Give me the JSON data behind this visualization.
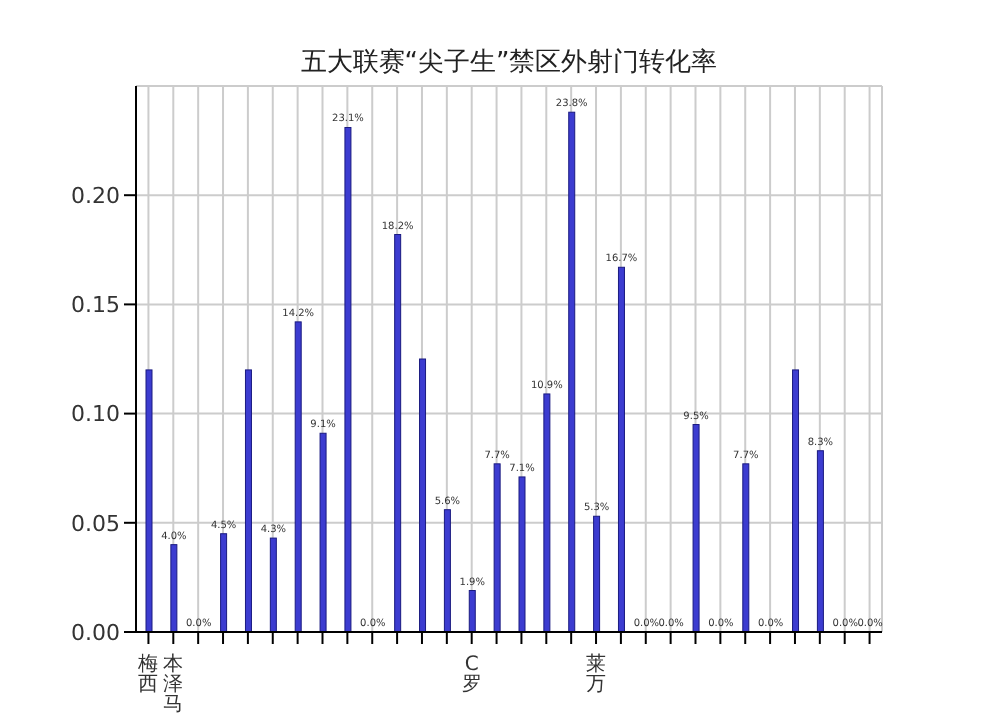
{
  "chart_data": {
    "type": "bar",
    "title": "五大联赛“尖子生”禁区外射门转化率",
    "categories": [
      "梅西",
      "本泽马",
      null,
      null,
      null,
      null,
      null,
      null,
      null,
      null,
      null,
      null,
      null,
      "C罗",
      null,
      null,
      null,
      null,
      "莱万",
      null,
      null,
      null,
      null,
      null,
      null,
      null,
      null,
      null,
      null,
      null
    ],
    "values": [
      0.12,
      0.04,
      0.0,
      0.045,
      0.12,
      0.043,
      0.142,
      0.091,
      0.231,
      0.0,
      0.182,
      0.125,
      0.056,
      0.019,
      0.077,
      0.071,
      0.109,
      0.238,
      0.053,
      0.167,
      0.0,
      0.0,
      0.095,
      0.0,
      0.077,
      0.0,
      0.12,
      0.083,
      0.0,
      0.0
    ],
    "value_labels": [
      null,
      "4.0%",
      "0.0%",
      "4.5%",
      null,
      "4.3%",
      "14.2%",
      "9.1%",
      "23.1%",
      "0.0%",
      "18.2%",
      null,
      "5.6%",
      "1.9%",
      "7.7%",
      "7.1%",
      "10.9%",
      "23.8%",
      "5.3%",
      "16.7%",
      "0.0%",
      "0.0%",
      "9.5%",
      "0.0%",
      "7.7%",
      "0.0%",
      null,
      "8.3%",
      "0.0%",
      "0.0%"
    ],
    "color": "#3c3cd0",
    "ylim": [
      0,
      0.25
    ],
    "yticks": [
      {
        "value": 0,
        "label": "0.00"
      },
      {
        "value": 0.05,
        "label": "0.05"
      },
      {
        "value": 0.1,
        "label": "0.10"
      },
      {
        "value": 0.15,
        "label": "0.15"
      },
      {
        "value": 0.2,
        "label": "0.20"
      }
    ],
    "grid": true
  }
}
